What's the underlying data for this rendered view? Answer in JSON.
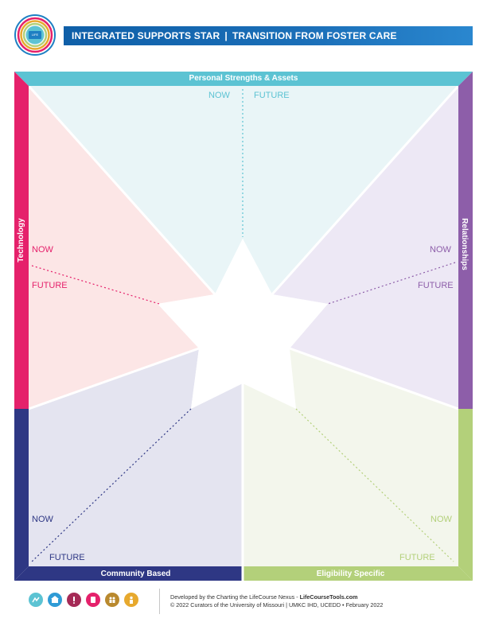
{
  "header": {
    "title_left": "INTEGRATED SUPPORTS STAR",
    "separator": "|",
    "title_right": "TRANSITION FROM FOSTER CARE"
  },
  "logo": {
    "icon": "lifecourse-logo",
    "text": "LIFE COURSE"
  },
  "sections": {
    "personal": {
      "title": "Personal Strengths & Assets",
      "now": "NOW",
      "future": "FUTURE",
      "color": "#5cc3d3",
      "fill": "#e9f5f7"
    },
    "relationships": {
      "title": "Relationships",
      "now": "NOW",
      "future": "FUTURE",
      "color": "#8d5ea9",
      "fill": "#ede8f5"
    },
    "eligibility": {
      "title": "Eligibility Specific",
      "now": "NOW",
      "future": "FUTURE",
      "color": "#b3d07a",
      "fill": "#f3f6ec"
    },
    "community": {
      "title": "Community Based",
      "now": "NOW",
      "future": "FUTURE",
      "color": "#2e3784",
      "fill": "#e4e4f0"
    },
    "technology": {
      "title": "Technology",
      "now": "NOW",
      "future": "FUTURE",
      "color": "#e5216b",
      "fill": "#fce6e6"
    }
  },
  "footer": {
    "icons": [
      {
        "name": "daily-life-icon",
        "color": "#5cc3d3"
      },
      {
        "name": "community-living-icon",
        "color": "#2f9bd6"
      },
      {
        "name": "safety-icon",
        "color": "#a52a56"
      },
      {
        "name": "health-icon",
        "color": "#e5216b"
      },
      {
        "name": "social-icon",
        "color": "#b9892e"
      },
      {
        "name": "citizenship-icon",
        "color": "#e7a92e"
      }
    ],
    "line1_prefix": "Developed by the Charting the LifeCourse Nexus - ",
    "line1_link": "LifeCourseTools.com",
    "line2": "© 2022 Curators of the University of Missouri  |  UMKC IHD, UCEDD  •  February 2022"
  }
}
